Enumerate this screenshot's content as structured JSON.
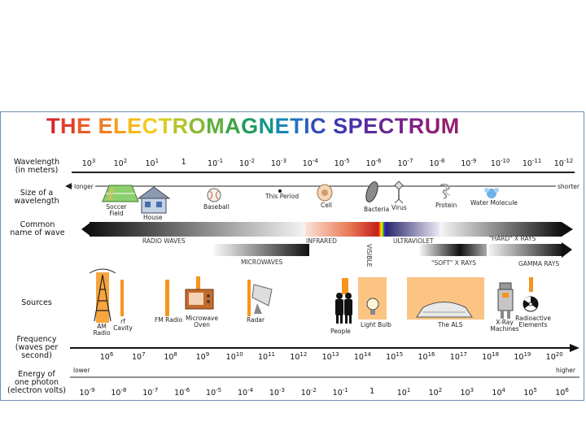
{
  "title": "THE ELECTROMAGNETIC SPECTRUM",
  "title_colors": [
    "#d7262b",
    "#e33d2a",
    "#ec5a28",
    "#f07e22",
    "#f59d1c",
    "#f6b81b",
    "#f2cb1f",
    "#d6cf22",
    "#b4c52a",
    "#8ab933",
    "#5fae3b",
    "#3ba445",
    "#1f9b60",
    "#15958a",
    "#1a86b2",
    "#2672c0",
    "#2c5fbe",
    "#334ab8",
    "#3d3ab0",
    "#4b31a8",
    "#5a2ba0",
    "#692796",
    "#76248d",
    "#802184",
    "#8a1f7c",
    "#93206f",
    "#9b2163",
    "#a22358"
  ],
  "labels": {
    "wavelength": [
      "Wavelength",
      "(in meters)"
    ],
    "size": [
      "Size of a",
      "wavelength"
    ],
    "common": [
      "Common",
      "name of wave"
    ],
    "sources": "Sources",
    "frequency": [
      "Frequency",
      "(waves per",
      "second)"
    ],
    "energy": [
      "Energy of",
      "one photon",
      "(electron volts)"
    ]
  },
  "wavelength_ticks": [
    {
      "b": "10",
      "e": "3"
    },
    {
      "b": "10",
      "e": "2"
    },
    {
      "b": "10",
      "e": "1"
    },
    {
      "b": "1",
      "e": ""
    },
    {
      "b": "10",
      "e": "-1"
    },
    {
      "b": "10",
      "e": "-2"
    },
    {
      "b": "10",
      "e": "-3"
    },
    {
      "b": "10",
      "e": "-4"
    },
    {
      "b": "10",
      "e": "-5"
    },
    {
      "b": "10",
      "e": "-6"
    },
    {
      "b": "10",
      "e": "-7"
    },
    {
      "b": "10",
      "e": "-8"
    },
    {
      "b": "10",
      "e": "-9"
    },
    {
      "b": "10",
      "e": "-10"
    },
    {
      "b": "10",
      "e": "-11"
    },
    {
      "b": "10",
      "e": "-12"
    }
  ],
  "longer": "longer",
  "shorter": "shorter",
  "sizes": {
    "soccer": "Soccer Field",
    "house": "House",
    "baseball": "Baseball",
    "period": "This Period",
    "cell": "Cell",
    "bacteria": "Bacteria",
    "virus": "Virus",
    "protein": "Protein",
    "water": "Water Molecule"
  },
  "waves": {
    "radio": "RADIO WAVES",
    "infrared": "INFRARED",
    "visible": "VISIBLE",
    "ultraviolet": "ULTRAVIOLET",
    "hard_xrays": "\"HARD\" X RAYS",
    "microwaves": "MICROWAVES",
    "soft_xrays": "\"SOFT\" X RAYS",
    "gamma": "GAMMA RAYS"
  },
  "sources": {
    "am": "AM Radio",
    "rf": "rf Cavity",
    "fm": "FM Radio",
    "microwave": "Microwave Oven",
    "radar": "Radar",
    "people": "People",
    "bulb": "Light Bulb",
    "als": "The ALS",
    "xray": "X-Ray Machines",
    "radioactive": "Radioactive Elements"
  },
  "frequency_ticks": [
    {
      "b": "10",
      "e": "6"
    },
    {
      "b": "10",
      "e": "7"
    },
    {
      "b": "10",
      "e": "8"
    },
    {
      "b": "10",
      "e": "9"
    },
    {
      "b": "10",
      "e": "10"
    },
    {
      "b": "10",
      "e": "11"
    },
    {
      "b": "10",
      "e": "12"
    },
    {
      "b": "10",
      "e": "13"
    },
    {
      "b": "10",
      "e": "14"
    },
    {
      "b": "10",
      "e": "15"
    },
    {
      "b": "10",
      "e": "16"
    },
    {
      "b": "10",
      "e": "17"
    },
    {
      "b": "10",
      "e": "18"
    },
    {
      "b": "10",
      "e": "19"
    },
    {
      "b": "10",
      "e": "20"
    }
  ],
  "lower": "lower",
  "higher": "higher",
  "energy_ticks": [
    {
      "b": "10",
      "e": "-9"
    },
    {
      "b": "10",
      "e": "-8"
    },
    {
      "b": "10",
      "e": "-7"
    },
    {
      "b": "10",
      "e": "-6"
    },
    {
      "b": "10",
      "e": "-5"
    },
    {
      "b": "10",
      "e": "-4"
    },
    {
      "b": "10",
      "e": "-3"
    },
    {
      "b": "10",
      "e": "-2"
    },
    {
      "b": "10",
      "e": "-1"
    },
    {
      "b": "1",
      "e": ""
    },
    {
      "b": "10",
      "e": "1"
    },
    {
      "b": "10",
      "e": "2"
    },
    {
      "b": "10",
      "e": "3"
    },
    {
      "b": "10",
      "e": "4"
    },
    {
      "b": "10",
      "e": "5"
    },
    {
      "b": "10",
      "e": "6"
    }
  ],
  "colors": {
    "orange": "#f7941d",
    "frame": "#6a8fb5"
  }
}
